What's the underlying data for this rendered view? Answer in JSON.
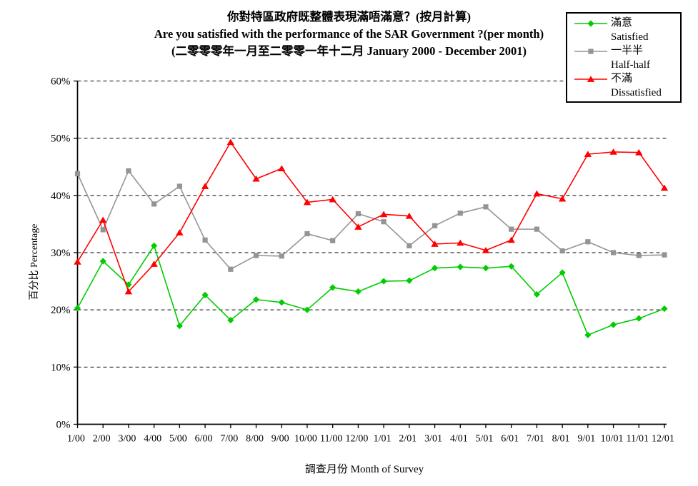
{
  "chart": {
    "title_zh": "你對特區政府既整體表現滿唔滿意？(按月計算)",
    "title_en": "Are you satisfied with the performance of the SAR Government ?(per month)",
    "title_period": "(二零零零年一月至二零零一年十二月 January 2000 - December 2001)"
  },
  "chart_data": {
    "type": "line",
    "title_zh": "你對特區政府既整體表現滿唔滿意？(按月計算)",
    "title_en": "Are you satisfied with the performance of the SAR Government ?(per month)",
    "title_period": "(二零零零年一月至二零零一年十二月 January 2000 - December 2001)",
    "xlabel": "調查月份 Month of Survey",
    "ylabel": "百分比 Percentage",
    "ylim": [
      0,
      60
    ],
    "ytick_step": 10,
    "ytick_labels": [
      "0%",
      "10%",
      "20%",
      "30%",
      "40%",
      "50%",
      "60%"
    ],
    "grid": "horizontal-dashed",
    "legend_position": "top-right",
    "categories": [
      "1/00",
      "2/00",
      "3/00",
      "4/00",
      "5/00",
      "6/00",
      "7/00",
      "8/00",
      "9/00",
      "10/00",
      "11/00",
      "12/00",
      "1/01",
      "2/01",
      "3/01",
      "4/01",
      "5/01",
      "6/01",
      "7/01",
      "8/01",
      "9/01",
      "10/01",
      "11/01",
      "12/01"
    ],
    "series": [
      {
        "name_zh": "滿意",
        "name_en": "Satisfied",
        "color": "#00CC00",
        "marker": "diamond",
        "values": [
          20.3,
          28.5,
          24.4,
          31.2,
          17.2,
          22.6,
          18.2,
          21.8,
          21.3,
          20.0,
          23.9,
          23.2,
          25.0,
          25.1,
          27.3,
          27.5,
          27.3,
          27.6,
          22.7,
          26.5,
          15.6,
          17.4,
          18.5,
          20.2
        ]
      },
      {
        "name_zh": "一半半",
        "name_en": "Half-half",
        "color": "#949494",
        "marker": "square",
        "values": [
          43.8,
          34.0,
          44.3,
          38.5,
          41.6,
          32.2,
          27.1,
          29.5,
          29.4,
          33.3,
          32.1,
          36.8,
          35.4,
          31.2,
          34.7,
          36.9,
          38.0,
          34.1,
          34.1,
          30.3,
          31.9,
          30.0,
          29.5,
          29.6
        ]
      },
      {
        "name_zh": "不滿",
        "name_en": "Dissatisfied",
        "color": "#FF0000",
        "marker": "triangle",
        "values": [
          28.4,
          35.7,
          23.2,
          28.0,
          33.5,
          41.6,
          49.3,
          42.9,
          44.7,
          38.8,
          39.3,
          34.5,
          36.7,
          36.4,
          31.5,
          31.7,
          30.4,
          32.2,
          40.3,
          39.4,
          47.2,
          47.6,
          47.5,
          41.3
        ]
      }
    ]
  }
}
